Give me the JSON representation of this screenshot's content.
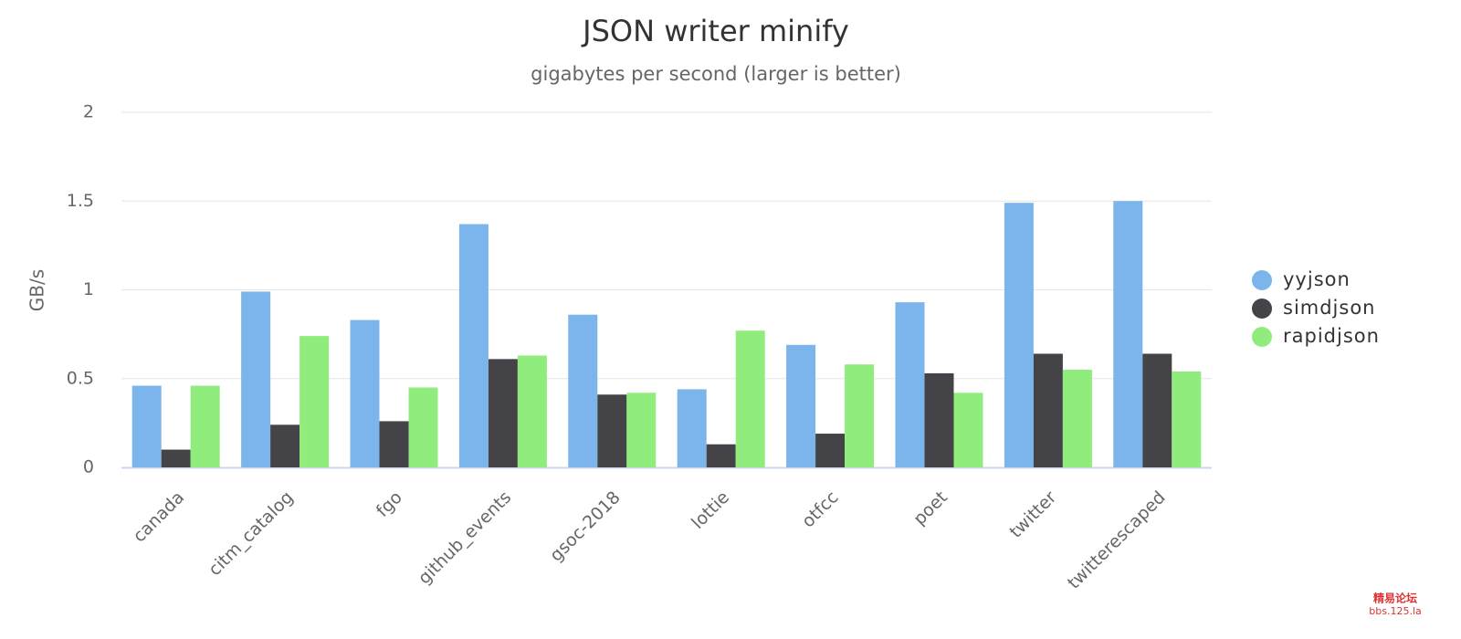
{
  "chart_data": {
    "type": "bar",
    "title": "JSON writer minify",
    "subtitle": "gigabytes per second (larger is better)",
    "y_label": "GB/s",
    "categories": [
      "canada",
      "citm_catalog",
      "fgo",
      "github_events",
      "gsoc-2018",
      "lottie",
      "otfcc",
      "poet",
      "twitter",
      "twitterescaped"
    ],
    "series": [
      {
        "name": "yyjson",
        "color": "#7cb5ec",
        "values": [
          0.46,
          0.99,
          0.83,
          1.37,
          0.86,
          0.44,
          0.69,
          0.93,
          1.49,
          1.5
        ]
      },
      {
        "name": "simdjson",
        "color": "#434348",
        "values": [
          0.1,
          0.24,
          0.26,
          0.61,
          0.41,
          0.13,
          0.19,
          0.53,
          0.64,
          0.64
        ]
      },
      {
        "name": "rapidjson",
        "color": "#90ed7d",
        "values": [
          0.46,
          0.74,
          0.45,
          0.63,
          0.42,
          0.77,
          0.58,
          0.42,
          0.55,
          0.54
        ]
      }
    ],
    "ylim": [
      0,
      2
    ],
    "yticks": [
      0,
      0.5,
      1,
      1.5,
      2
    ],
    "grid": true,
    "legend": "right",
    "watermark": [
      "精易论坛",
      "bbs.125.la"
    ]
  }
}
